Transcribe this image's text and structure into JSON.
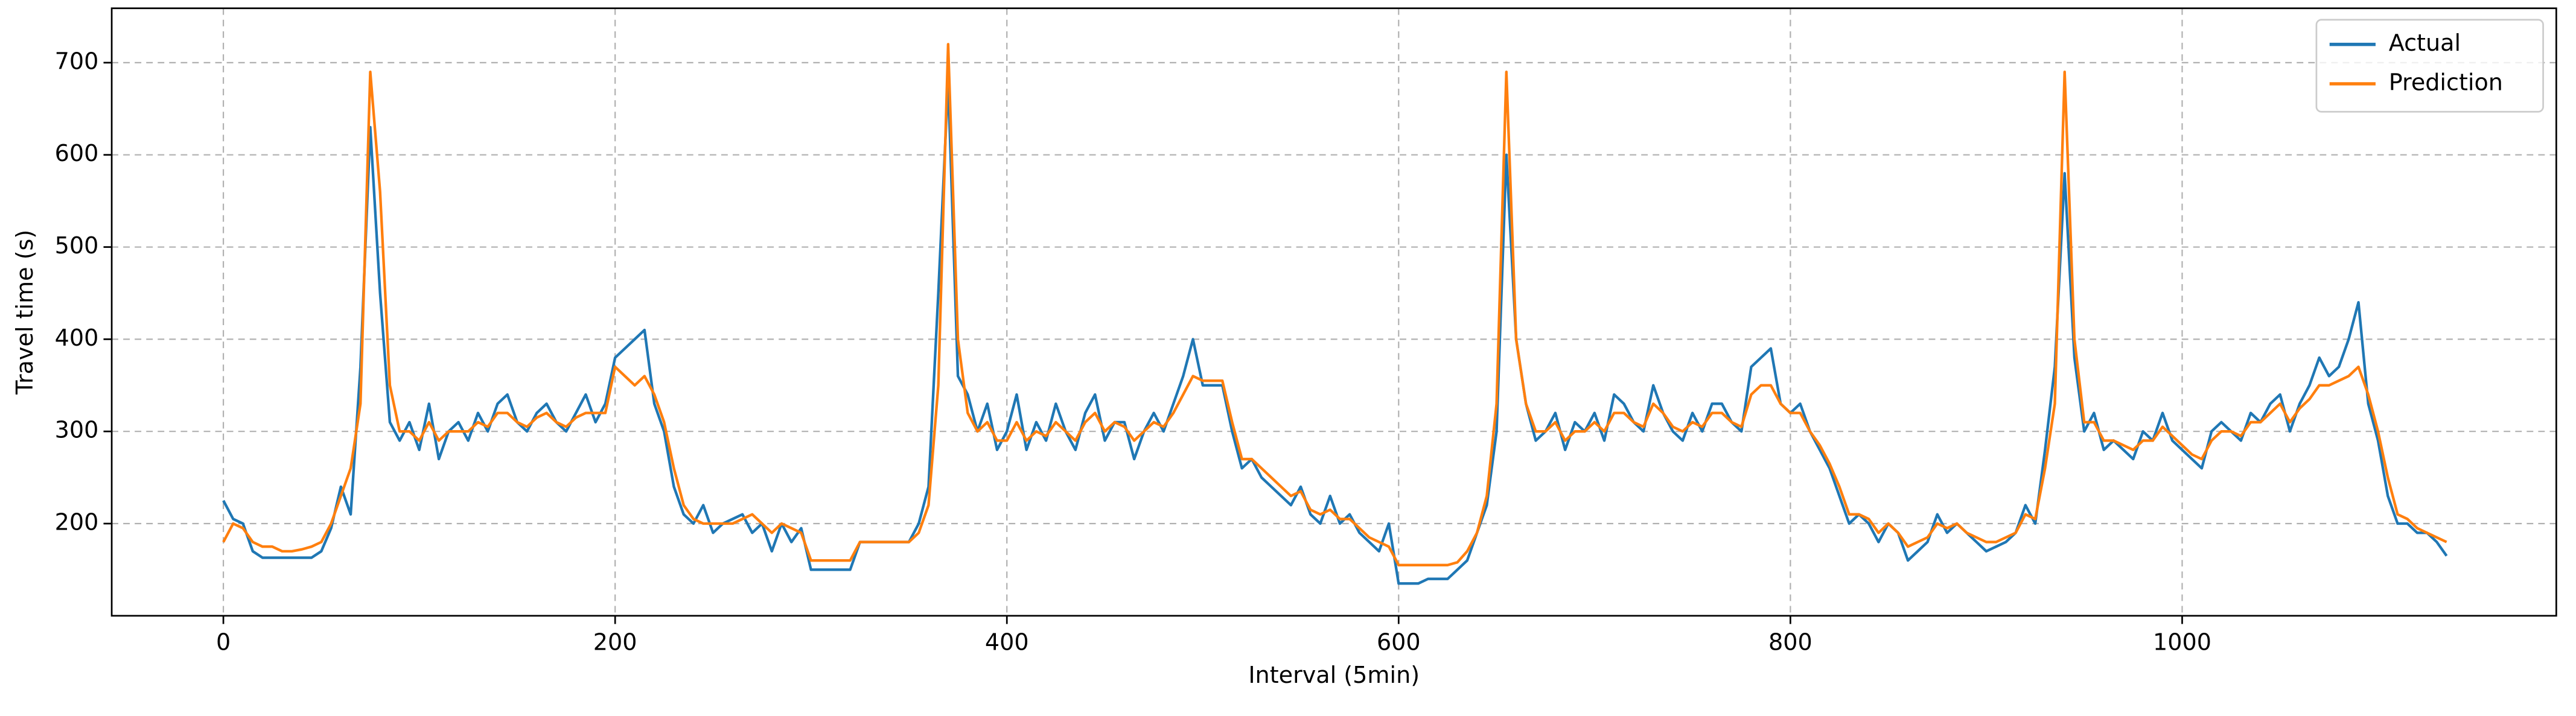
{
  "chart_data": {
    "type": "line",
    "xlabel": "Interval (5min)",
    "ylabel": "Travel time (s)",
    "xlim": [
      -57,
      1191
    ],
    "ylim": [
      100,
      759
    ],
    "xticks": [
      0,
      200,
      400,
      600,
      800,
      1000
    ],
    "yticks": [
      200,
      300,
      400,
      500,
      600,
      700
    ],
    "grid": true,
    "legend": "upper right",
    "x": [
      0,
      5,
      10,
      15,
      20,
      25,
      30,
      35,
      40,
      45,
      50,
      55,
      60,
      65,
      70,
      75,
      80,
      85,
      90,
      95,
      100,
      105,
      110,
      115,
      120,
      125,
      130,
      135,
      140,
      145,
      150,
      155,
      160,
      165,
      170,
      175,
      180,
      185,
      190,
      195,
      200,
      205,
      210,
      215,
      220,
      225,
      230,
      235,
      240,
      245,
      250,
      255,
      260,
      265,
      270,
      275,
      280,
      285,
      290,
      295,
      300,
      305,
      310,
      315,
      320,
      325,
      330,
      335,
      340,
      345,
      350,
      355,
      360,
      365,
      370,
      375,
      380,
      385,
      390,
      395,
      400,
      405,
      410,
      415,
      420,
      425,
      430,
      435,
      440,
      445,
      450,
      455,
      460,
      465,
      470,
      475,
      480,
      485,
      490,
      495,
      500,
      505,
      510,
      515,
      520,
      525,
      530,
      535,
      540,
      545,
      550,
      555,
      560,
      565,
      570,
      575,
      580,
      585,
      590,
      595,
      600,
      605,
      610,
      615,
      620,
      625,
      630,
      635,
      640,
      645,
      650,
      655,
      660,
      665,
      670,
      675,
      680,
      685,
      690,
      695,
      700,
      705,
      710,
      715,
      720,
      725,
      730,
      735,
      740,
      745,
      750,
      755,
      760,
      765,
      770,
      775,
      780,
      785,
      790,
      795,
      800,
      805,
      810,
      815,
      820,
      825,
      830,
      835,
      840,
      845,
      850,
      855,
      860,
      865,
      870,
      875,
      880,
      885,
      890,
      895,
      900,
      905,
      910,
      915,
      920,
      925,
      930,
      935,
      940,
      945,
      950,
      955,
      960,
      965,
      970,
      975,
      980,
      985,
      990,
      995,
      1000,
      1005,
      1010,
      1015,
      1020,
      1025,
      1030,
      1035,
      1040,
      1045,
      1050,
      1055,
      1060,
      1065,
      1070,
      1075,
      1080,
      1085,
      1090,
      1095,
      1100,
      1105,
      1110,
      1115,
      1120,
      1125,
      1130,
      1135
    ],
    "series": [
      {
        "name": "Actual",
        "color": "#1f77b4",
        "values": [
          225,
          205,
          200,
          170,
          163,
          163,
          163,
          163,
          163,
          163,
          170,
          195,
          240,
          210,
          370,
          630,
          450,
          310,
          290,
          310,
          280,
          330,
          270,
          300,
          310,
          290,
          320,
          300,
          330,
          340,
          310,
          300,
          320,
          330,
          310,
          300,
          320,
          340,
          310,
          330,
          380,
          390,
          400,
          410,
          330,
          300,
          240,
          210,
          200,
          220,
          190,
          200,
          205,
          210,
          190,
          200,
          170,
          200,
          180,
          195,
          150,
          150,
          150,
          150,
          150,
          180,
          180,
          180,
          180,
          180,
          180,
          200,
          240,
          450,
          680,
          360,
          340,
          300,
          330,
          280,
          300,
          340,
          280,
          310,
          290,
          330,
          300,
          280,
          320,
          340,
          290,
          310,
          310,
          270,
          300,
          320,
          300,
          330,
          360,
          400,
          350,
          350,
          350,
          300,
          260,
          270,
          250,
          240,
          230,
          220,
          240,
          210,
          200,
          230,
          200,
          210,
          190,
          180,
          170,
          200,
          135,
          135,
          135,
          140,
          140,
          140,
          150,
          160,
          190,
          220,
          300,
          600,
          400,
          330,
          290,
          300,
          320,
          280,
          310,
          300,
          320,
          290,
          340,
          330,
          310,
          300,
          350,
          320,
          300,
          290,
          320,
          300,
          330,
          330,
          310,
          300,
          370,
          380,
          390,
          330,
          320,
          330,
          300,
          280,
          260,
          230,
          200,
          210,
          200,
          180,
          200,
          190,
          160,
          170,
          180,
          210,
          190,
          200,
          190,
          180,
          170,
          175,
          180,
          190,
          220,
          200,
          280,
          370,
          580,
          380,
          300,
          320,
          280,
          290,
          280,
          270,
          300,
          290,
          320,
          290,
          280,
          270,
          260,
          300,
          310,
          300,
          290,
          320,
          310,
          330,
          340,
          300,
          330,
          350,
          380,
          360,
          370,
          400,
          440,
          330,
          290,
          230,
          200,
          200,
          190,
          190,
          180,
          165
        ]
      },
      {
        "name": "Prediction",
        "color": "#ff7f0e",
        "values": [
          180,
          200,
          195,
          180,
          175,
          175,
          170,
          170,
          172,
          175,
          180,
          200,
          230,
          260,
          330,
          690,
          560,
          350,
          300,
          300,
          290,
          310,
          290,
          300,
          300,
          300,
          310,
          305,
          320,
          320,
          310,
          305,
          315,
          320,
          310,
          305,
          315,
          320,
          320,
          320,
          370,
          360,
          350,
          360,
          340,
          310,
          260,
          220,
          205,
          200,
          200,
          200,
          200,
          205,
          210,
          200,
          190,
          200,
          195,
          190,
          160,
          160,
          160,
          160,
          160,
          180,
          180,
          180,
          180,
          180,
          180,
          190,
          220,
          350,
          720,
          400,
          320,
          300,
          310,
          290,
          290,
          310,
          290,
          300,
          295,
          310,
          300,
          290,
          310,
          320,
          300,
          310,
          305,
          290,
          300,
          310,
          305,
          320,
          340,
          360,
          355,
          355,
          355,
          310,
          270,
          270,
          260,
          250,
          240,
          230,
          235,
          215,
          210,
          215,
          205,
          205,
          195,
          185,
          180,
          175,
          155,
          155,
          155,
          155,
          155,
          155,
          158,
          170,
          190,
          230,
          330,
          690,
          400,
          330,
          300,
          300,
          310,
          290,
          300,
          300,
          310,
          300,
          320,
          320,
          310,
          305,
          330,
          320,
          305,
          300,
          310,
          305,
          320,
          320,
          310,
          305,
          340,
          350,
          350,
          330,
          320,
          320,
          300,
          285,
          265,
          240,
          210,
          210,
          205,
          190,
          200,
          190,
          175,
          180,
          185,
          200,
          195,
          200,
          190,
          185,
          180,
          180,
          185,
          190,
          210,
          205,
          260,
          330,
          690,
          400,
          310,
          310,
          290,
          290,
          285,
          280,
          290,
          290,
          305,
          295,
          285,
          275,
          270,
          290,
          300,
          300,
          295,
          310,
          310,
          320,
          330,
          310,
          325,
          335,
          350,
          350,
          355,
          360,
          370,
          340,
          300,
          250,
          210,
          205,
          195,
          190,
          185,
          180
        ]
      }
    ]
  }
}
